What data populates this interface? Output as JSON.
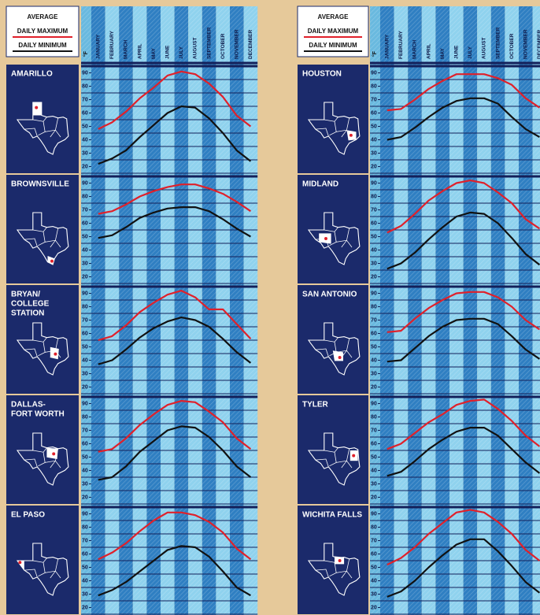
{
  "legend_title": "AVERAGE",
  "unit": "°F",
  "chart_data": [
    {
      "type": "line",
      "title": [
        "AMARILLO"
      ],
      "categories": [
        "JANUARY",
        "FEBRUARY",
        "MARCH",
        "APRIL",
        "MAY",
        "JUNE",
        "JULY",
        "AUGUST",
        "SEPTEMBER",
        "OCTOBER",
        "NOVEMBER",
        "DECEMBER"
      ],
      "series": [
        {
          "name": "DAILY MAXIMUM",
          "color": "#e0202a",
          "values": [
            48,
            53,
            61,
            71,
            79,
            88,
            91,
            89,
            82,
            72,
            58,
            50
          ]
        },
        {
          "name": "DAILY MINIMUM",
          "color": "#111111",
          "values": [
            22,
            26,
            32,
            42,
            51,
            60,
            65,
            64,
            56,
            45,
            32,
            24
          ]
        }
      ],
      "ylim": [
        15,
        95
      ],
      "yticks": [
        90,
        80,
        70,
        60,
        50,
        40,
        30,
        20
      ]
    },
    {
      "type": "line",
      "title": [
        "BROWNSVILLE"
      ],
      "categories": [
        "JANUARY",
        "FEBRUARY",
        "MARCH",
        "APRIL",
        "MAY",
        "JUNE",
        "JULY",
        "AUGUST",
        "SEPTEMBER",
        "OCTOBER",
        "NOVEMBER",
        "DECEMBER"
      ],
      "series": [
        {
          "name": "DAILY MAXIMUM",
          "color": "#e0202a",
          "values": [
            67,
            69,
            74,
            80,
            84,
            87,
            89,
            89,
            86,
            82,
            76,
            69
          ]
        },
        {
          "name": "DAILY MINIMUM",
          "color": "#111111",
          "values": [
            49,
            51,
            57,
            64,
            68,
            71,
            72,
            72,
            69,
            63,
            56,
            50
          ]
        }
      ],
      "ylim": [
        15,
        95
      ],
      "yticks": [
        90,
        80,
        70,
        60,
        50,
        40,
        30,
        20
      ]
    },
    {
      "type": "line",
      "title": [
        "BRYAN/",
        "COLLEGE",
        "STATION"
      ],
      "categories": [
        "JANUARY",
        "FEBRUARY",
        "MARCH",
        "APRIL",
        "MAY",
        "JUNE",
        "JULY",
        "AUGUST",
        "SEPTEMBER",
        "OCTOBER",
        "NOVEMBER",
        "DECEMBER"
      ],
      "series": [
        {
          "name": "DAILY MAXIMUM",
          "color": "#e0202a",
          "values": [
            55,
            58,
            66,
            76,
            83,
            89,
            92,
            87,
            78,
            78,
            67,
            56
          ]
        },
        {
          "name": "DAILY MINIMUM",
          "color": "#111111",
          "values": [
            37,
            40,
            48,
            57,
            64,
            69,
            72,
            70,
            65,
            56,
            46,
            38
          ]
        }
      ],
      "ylim": [
        15,
        95
      ],
      "yticks": [
        90,
        80,
        70,
        60,
        50,
        40,
        30,
        20
      ]
    },
    {
      "type": "line",
      "title": [
        "DALLAS-",
        "FORT WORTH"
      ],
      "categories": [
        "JANUARY",
        "FEBRUARY",
        "MARCH",
        "APRIL",
        "MAY",
        "JUNE",
        "JULY",
        "AUGUST",
        "SEPTEMBER",
        "OCTOBER",
        "NOVEMBER",
        "DECEMBER"
      ],
      "series": [
        {
          "name": "DAILY MAXIMUM",
          "color": "#e0202a",
          "values": [
            54,
            56,
            64,
            74,
            82,
            89,
            92,
            91,
            84,
            76,
            64,
            56
          ]
        },
        {
          "name": "DAILY MINIMUM",
          "color": "#111111",
          "values": [
            33,
            35,
            43,
            54,
            62,
            70,
            73,
            72,
            65,
            55,
            43,
            35
          ]
        }
      ],
      "ylim": [
        15,
        95
      ],
      "yticks": [
        90,
        80,
        70,
        60,
        50,
        40,
        30,
        20
      ]
    },
    {
      "type": "line",
      "title": [
        "EL PASO"
      ],
      "categories": [
        "JANUARY",
        "FEBRUARY",
        "MARCH",
        "APRIL",
        "MAY",
        "JUNE",
        "JULY",
        "AUGUST",
        "SEPTEMBER",
        "OCTOBER",
        "NOVEMBER",
        "DECEMBER"
      ],
      "series": [
        {
          "name": "DAILY MAXIMUM",
          "color": "#e0202a",
          "values": [
            56,
            61,
            68,
            77,
            85,
            91,
            91,
            89,
            84,
            76,
            64,
            56
          ]
        },
        {
          "name": "DAILY MINIMUM",
          "color": "#111111",
          "values": [
            29,
            33,
            39,
            47,
            55,
            63,
            66,
            65,
            58,
            47,
            35,
            29
          ]
        }
      ],
      "ylim": [
        15,
        95
      ],
      "yticks": [
        90,
        80,
        70,
        60,
        50,
        40,
        30,
        20
      ]
    },
    {
      "type": "line",
      "title": [
        "HOUSTON"
      ],
      "categories": [
        "JANUARY",
        "FEBRUARY",
        "MARCH",
        "APRIL",
        "MAY",
        "JUNE",
        "JULY",
        "AUGUST",
        "SEPTEMBER",
        "OCTOBER",
        "NOVEMBER",
        "DECEMBER"
      ],
      "series": [
        {
          "name": "DAILY MAXIMUM",
          "color": "#e0202a",
          "values": [
            62,
            63,
            70,
            78,
            84,
            89,
            89,
            89,
            86,
            81,
            71,
            64
          ]
        },
        {
          "name": "DAILY MINIMUM",
          "color": "#111111",
          "values": [
            40,
            42,
            49,
            57,
            64,
            69,
            71,
            71,
            67,
            57,
            48,
            42
          ]
        }
      ],
      "ylim": [
        15,
        95
      ],
      "yticks": [
        90,
        80,
        70,
        60,
        50,
        40,
        30,
        20
      ]
    },
    {
      "type": "line",
      "title": [
        "MIDLAND"
      ],
      "categories": [
        "JANUARY",
        "FEBRUARY",
        "MARCH",
        "APRIL",
        "MAY",
        "JUNE",
        "JULY",
        "AUGUST",
        "SEPTEMBER",
        "OCTOBER",
        "NOVEMBER",
        "DECEMBER"
      ],
      "series": [
        {
          "name": "DAILY MAXIMUM",
          "color": "#e0202a",
          "values": [
            53,
            58,
            67,
            77,
            84,
            90,
            92,
            90,
            83,
            75,
            63,
            56
          ]
        },
        {
          "name": "DAILY MINIMUM",
          "color": "#111111",
          "values": [
            26,
            30,
            38,
            48,
            57,
            65,
            68,
            67,
            60,
            49,
            37,
            29
          ]
        }
      ],
      "ylim": [
        15,
        95
      ],
      "yticks": [
        90,
        80,
        70,
        60,
        50,
        40,
        30,
        20
      ]
    },
    {
      "type": "line",
      "title": [
        "SAN ANTONIO"
      ],
      "categories": [
        "JANUARY",
        "FEBRUARY",
        "MARCH",
        "APRIL",
        "MAY",
        "JUNE",
        "JULY",
        "AUGUST",
        "SEPTEMBER",
        "OCTOBER",
        "NOVEMBER",
        "DECEMBER"
      ],
      "series": [
        {
          "name": "DAILY MAXIMUM",
          "color": "#e0202a",
          "values": [
            61,
            62,
            71,
            79,
            85,
            90,
            91,
            91,
            87,
            80,
            70,
            63
          ]
        },
        {
          "name": "DAILY MINIMUM",
          "color": "#111111",
          "values": [
            39,
            40,
            49,
            58,
            65,
            70,
            71,
            71,
            67,
            58,
            48,
            41
          ]
        }
      ],
      "ylim": [
        15,
        95
      ],
      "yticks": [
        90,
        80,
        70,
        60,
        50,
        40,
        30,
        20
      ]
    },
    {
      "type": "line",
      "title": [
        "TYLER"
      ],
      "categories": [
        "JANUARY",
        "FEBRUARY",
        "MARCH",
        "APRIL",
        "MAY",
        "JUNE",
        "JULY",
        "AUGUST",
        "SEPTEMBER",
        "OCTOBER",
        "NOVEMBER",
        "DECEMBER"
      ],
      "series": [
        {
          "name": "DAILY MAXIMUM",
          "color": "#e0202a",
          "values": [
            56,
            60,
            68,
            76,
            82,
            89,
            92,
            93,
            86,
            77,
            66,
            58
          ]
        },
        {
          "name": "DAILY MINIMUM",
          "color": "#111111",
          "values": [
            36,
            39,
            47,
            56,
            63,
            69,
            72,
            72,
            66,
            56,
            46,
            38
          ]
        }
      ],
      "ylim": [
        15,
        95
      ],
      "yticks": [
        90,
        80,
        70,
        60,
        50,
        40,
        30,
        20
      ]
    },
    {
      "type": "line",
      "title": [
        "WICHITA FALLS"
      ],
      "categories": [
        "JANUARY",
        "FEBRUARY",
        "MARCH",
        "APRIL",
        "MAY",
        "JUNE",
        "JULY",
        "AUGUST",
        "SEPTEMBER",
        "OCTOBER",
        "NOVEMBER",
        "DECEMBER"
      ],
      "series": [
        {
          "name": "DAILY MAXIMUM",
          "color": "#e0202a",
          "values": [
            52,
            57,
            65,
            75,
            83,
            91,
            93,
            91,
            84,
            75,
            63,
            55
          ]
        },
        {
          "name": "DAILY MINIMUM",
          "color": "#111111",
          "values": [
            28,
            32,
            40,
            50,
            59,
            67,
            71,
            71,
            62,
            51,
            39,
            31
          ]
        }
      ],
      "ylim": [
        15,
        95
      ],
      "yticks": [
        90,
        80,
        70,
        60,
        50,
        40,
        30,
        20
      ]
    }
  ]
}
